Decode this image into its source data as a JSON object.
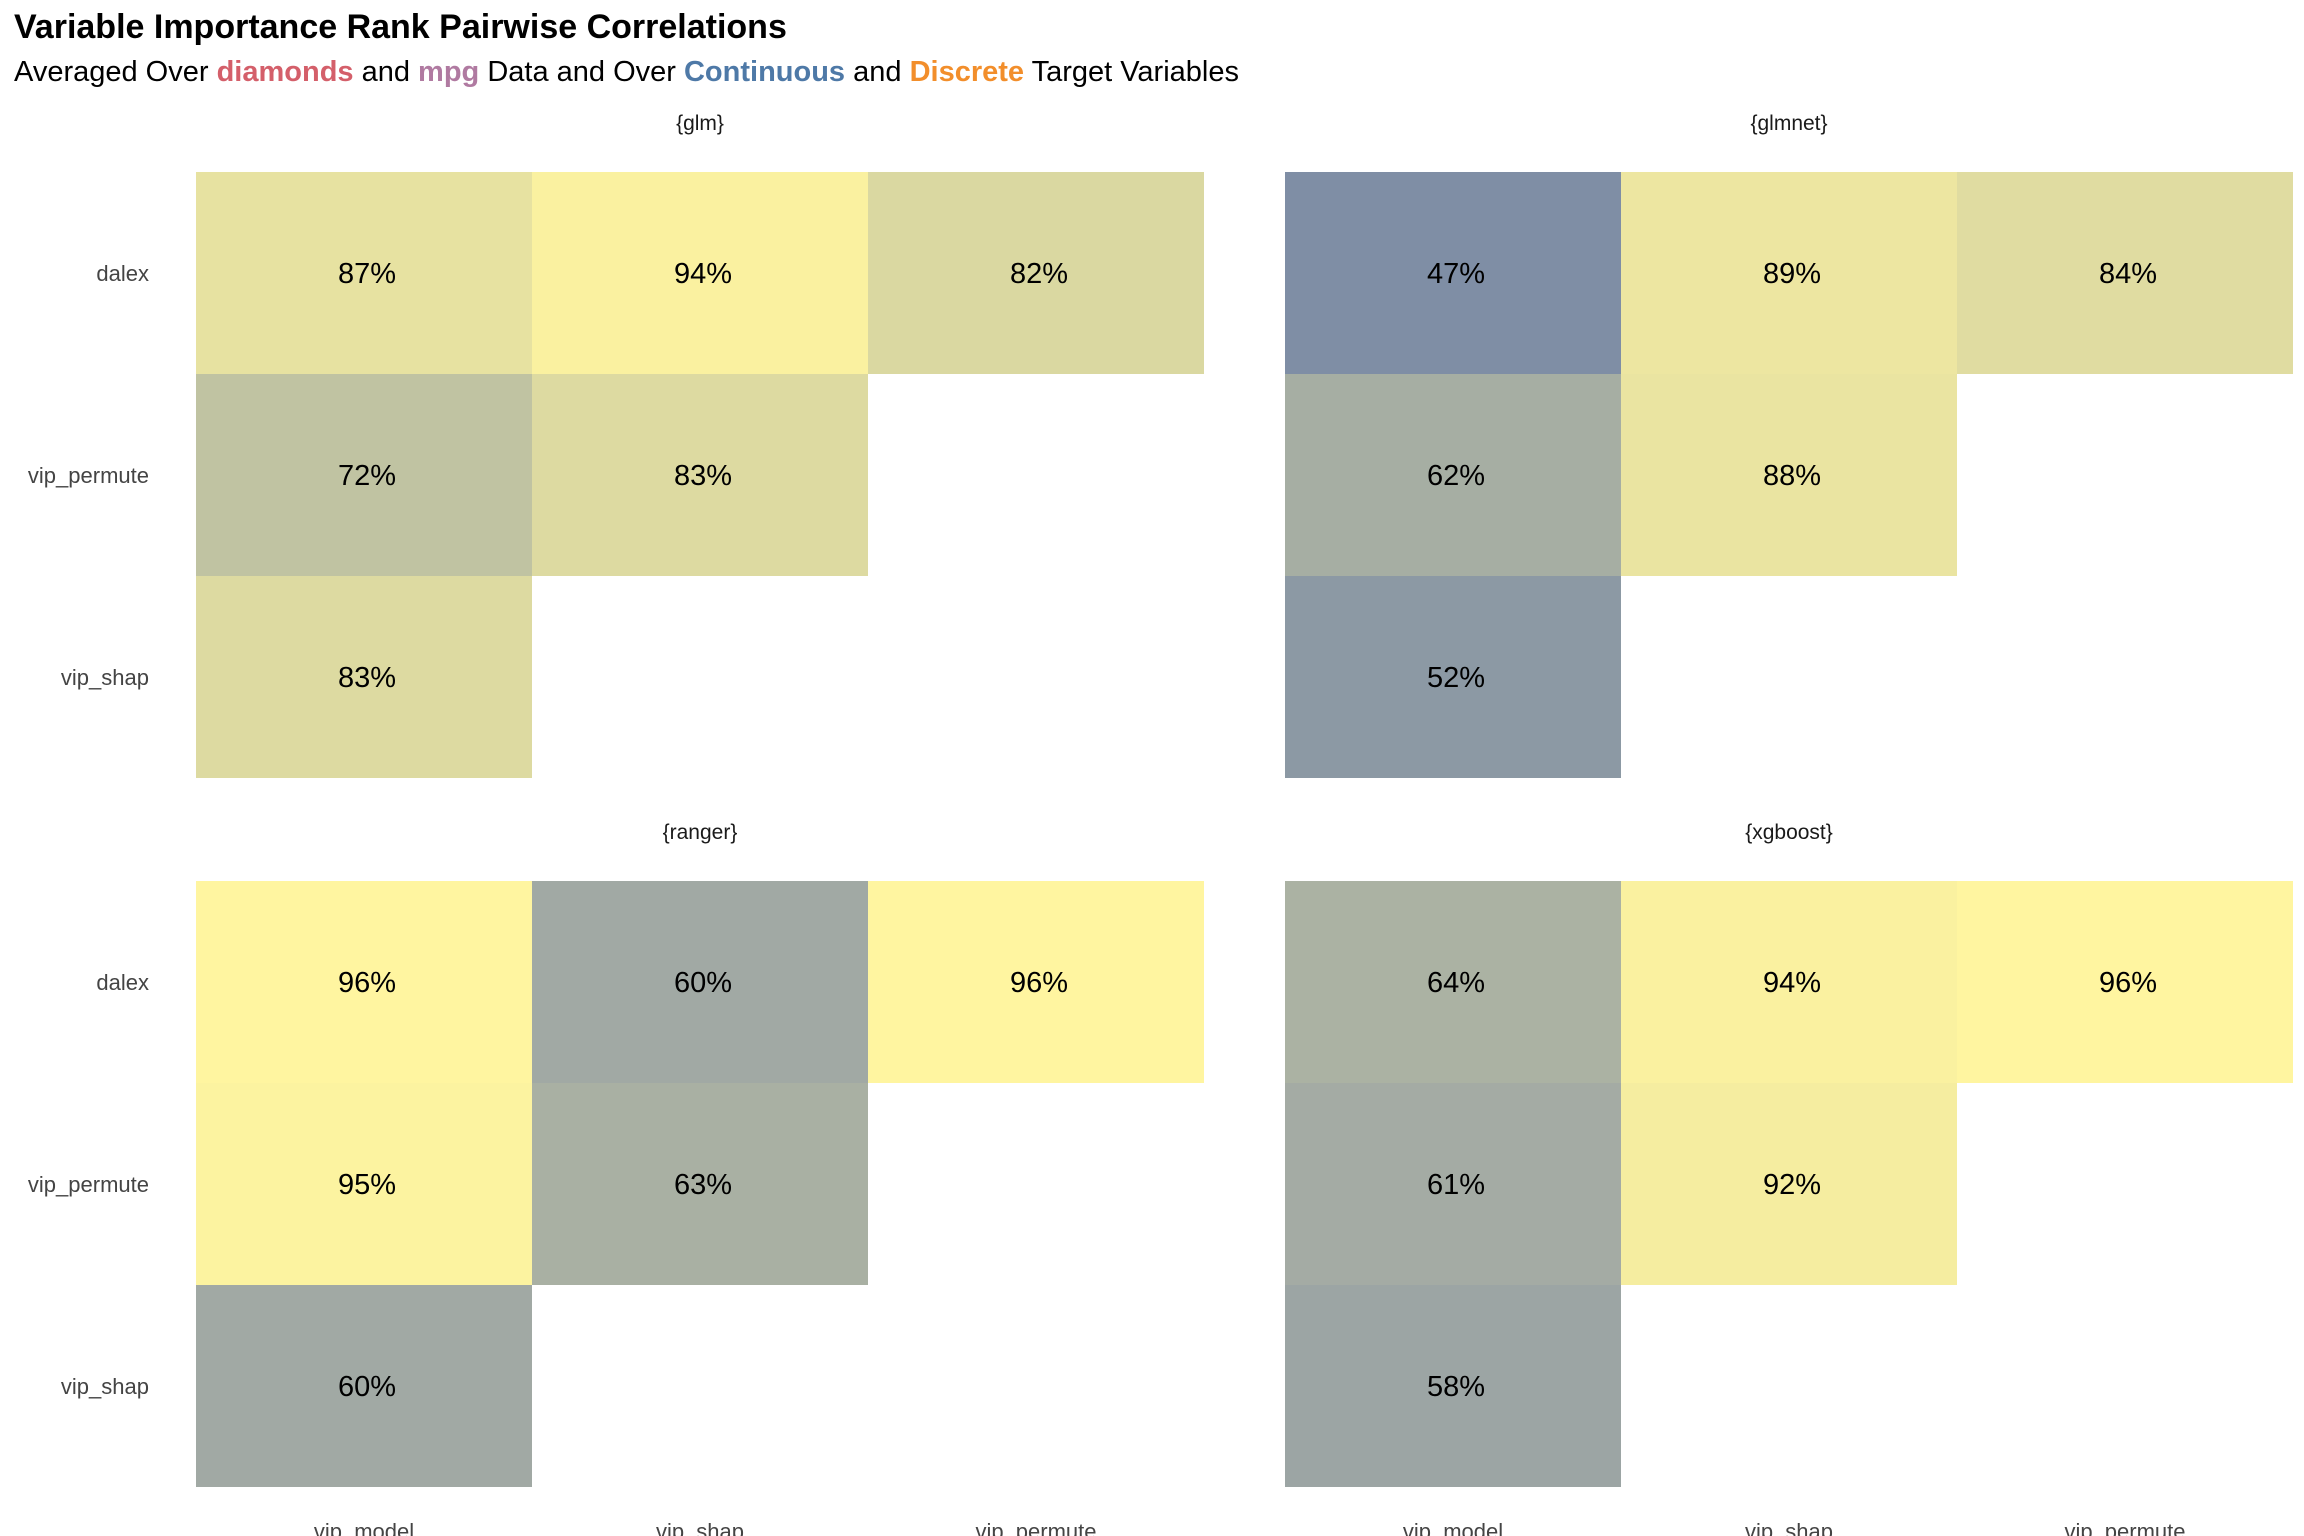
{
  "title": "Variable Importance Rank Pairwise Correlations",
  "subtitle": {
    "t1": "Averaged Over ",
    "ds1": "diamonds",
    "t2": " and ",
    "ds2": "mpg",
    "t3": " Data and Over ",
    "tg1": "Continuous",
    "t4": " and ",
    "tg2": "Discrete",
    "t5": " Target Variables"
  },
  "colors": {
    "diamonds": "#d45f6a",
    "mpg": "#b07aa1",
    "continuous": "#4e79a7",
    "discrete": "#f28e2b",
    "low": "#7f8ea5",
    "high": "#fff5a0"
  },
  "chart_data": {
    "type": "heatmap",
    "x_categories": [
      "vip_model",
      "vip_shap",
      "vip_permute"
    ],
    "y_categories": [
      "dalex",
      "vip_permute",
      "vip_shap"
    ],
    "panels": [
      {
        "name": "{glm}",
        "cells": [
          {
            "row": "dalex",
            "col": "vip_model",
            "value": 87
          },
          {
            "row": "dalex",
            "col": "vip_shap",
            "value": 94
          },
          {
            "row": "dalex",
            "col": "vip_permute",
            "value": 82
          },
          {
            "row": "vip_permute",
            "col": "vip_model",
            "value": 72
          },
          {
            "row": "vip_permute",
            "col": "vip_shap",
            "value": 83
          },
          {
            "row": "vip_shap",
            "col": "vip_model",
            "value": 83
          }
        ]
      },
      {
        "name": "{glmnet}",
        "cells": [
          {
            "row": "dalex",
            "col": "vip_model",
            "value": 47
          },
          {
            "row": "dalex",
            "col": "vip_shap",
            "value": 89
          },
          {
            "row": "dalex",
            "col": "vip_permute",
            "value": 84
          },
          {
            "row": "vip_permute",
            "col": "vip_model",
            "value": 62
          },
          {
            "row": "vip_permute",
            "col": "vip_shap",
            "value": 88
          },
          {
            "row": "vip_shap",
            "col": "vip_model",
            "value": 52
          }
        ]
      },
      {
        "name": "{ranger}",
        "cells": [
          {
            "row": "dalex",
            "col": "vip_model",
            "value": 96
          },
          {
            "row": "dalex",
            "col": "vip_shap",
            "value": 60
          },
          {
            "row": "dalex",
            "col": "vip_permute",
            "value": 96
          },
          {
            "row": "vip_permute",
            "col": "vip_model",
            "value": 95
          },
          {
            "row": "vip_permute",
            "col": "vip_shap",
            "value": 63
          },
          {
            "row": "vip_shap",
            "col": "vip_model",
            "value": 60
          }
        ]
      },
      {
        "name": "{xgboost}",
        "cells": [
          {
            "row": "dalex",
            "col": "vip_model",
            "value": 64
          },
          {
            "row": "dalex",
            "col": "vip_shap",
            "value": 94
          },
          {
            "row": "dalex",
            "col": "vip_permute",
            "value": 96
          },
          {
            "row": "vip_permute",
            "col": "vip_model",
            "value": 61
          },
          {
            "row": "vip_permute",
            "col": "vip_shap",
            "value": 92
          },
          {
            "row": "vip_shap",
            "col": "vip_model",
            "value": 58
          }
        ]
      }
    ],
    "value_suffix": "%",
    "grid": false,
    "legend": "none"
  }
}
